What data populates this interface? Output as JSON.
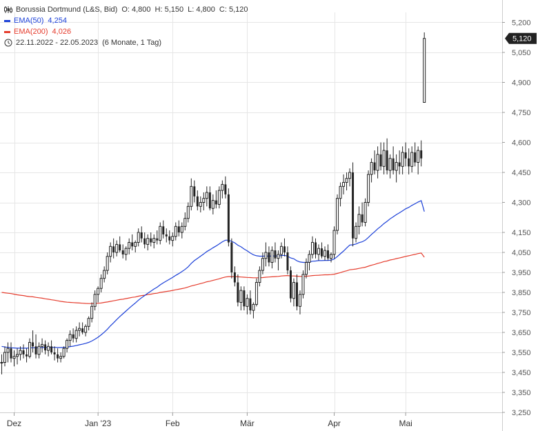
{
  "legend": {
    "instrument": "Borussia Dortmund (L&S, Bid)",
    "open_label": "O: 4,800",
    "high_label": "H: 5,150",
    "low_label": "L: 4,800",
    "close_label": "C: 5,120",
    "ema50_label": "EMA(50)",
    "ema50_value": "4,254",
    "ema200_label": "EMA(200)",
    "ema200_value": "4,026",
    "range": "22.11.2022 - 22.05.2023",
    "period": "(6 Monate, 1 Tag)"
  },
  "colors": {
    "candle": "#222222",
    "ema50": "#1a3fd8",
    "ema200": "#e53b2c",
    "grid": "#e6e6e6",
    "price_badge": "#222222"
  },
  "price_badge": "5,120",
  "chart_data": {
    "type": "candlestick",
    "ylim": [
      3.25,
      5.25
    ],
    "y_ticks": [
      "5,200",
      "5,050",
      "4,900",
      "4,750",
      "4,600",
      "4,450",
      "4,300",
      "4,150",
      "4,050",
      "3,950",
      "3,850",
      "3,750",
      "3,650",
      "3,550",
      "3,450",
      "3,350",
      "3,250"
    ],
    "y_tick_values": [
      5.2,
      5.05,
      4.9,
      4.75,
      4.6,
      4.45,
      4.3,
      4.15,
      4.05,
      3.95,
      3.85,
      3.75,
      3.65,
      3.55,
      3.45,
      3.35,
      3.25
    ],
    "x_labels": [
      "Dez",
      "Jan '23",
      "Feb",
      "Mär",
      "Apr",
      "Mai"
    ],
    "x_label_index": [
      4,
      31,
      55,
      79,
      107,
      130
    ],
    "candles": [
      [
        3.5,
        3.54,
        3.44,
        3.5
      ],
      [
        3.5,
        3.58,
        3.48,
        3.55
      ],
      [
        3.55,
        3.6,
        3.5,
        3.57
      ],
      [
        3.57,
        3.6,
        3.5,
        3.52
      ],
      [
        3.52,
        3.56,
        3.48,
        3.53
      ],
      [
        3.53,
        3.57,
        3.49,
        3.54
      ],
      [
        3.54,
        3.58,
        3.51,
        3.56
      ],
      [
        3.56,
        3.59,
        3.52,
        3.54
      ],
      [
        3.54,
        3.57,
        3.5,
        3.53
      ],
      [
        3.53,
        3.62,
        3.52,
        3.6
      ],
      [
        3.6,
        3.66,
        3.55,
        3.58
      ],
      [
        3.58,
        3.64,
        3.52,
        3.54
      ],
      [
        3.54,
        3.6,
        3.52,
        3.58
      ],
      [
        3.58,
        3.62,
        3.55,
        3.59
      ],
      [
        3.59,
        3.61,
        3.54,
        3.56
      ],
      [
        3.56,
        3.6,
        3.53,
        3.58
      ],
      [
        3.58,
        3.61,
        3.54,
        3.55
      ],
      [
        3.55,
        3.58,
        3.51,
        3.54
      ],
      [
        3.54,
        3.57,
        3.5,
        3.52
      ],
      [
        3.52,
        3.55,
        3.5,
        3.53
      ],
      [
        3.53,
        3.58,
        3.52,
        3.57
      ],
      [
        3.57,
        3.62,
        3.55,
        3.61
      ],
      [
        3.61,
        3.66,
        3.58,
        3.64
      ],
      [
        3.64,
        3.67,
        3.6,
        3.62
      ],
      [
        3.62,
        3.68,
        3.6,
        3.66
      ],
      [
        3.66,
        3.7,
        3.63,
        3.67
      ],
      [
        3.67,
        3.7,
        3.64,
        3.65
      ],
      [
        3.65,
        3.69,
        3.63,
        3.68
      ],
      [
        3.68,
        3.73,
        3.66,
        3.72
      ],
      [
        3.72,
        3.8,
        3.7,
        3.78
      ],
      [
        3.78,
        3.86,
        3.76,
        3.84
      ],
      [
        3.84,
        3.88,
        3.8,
        3.87
      ],
      [
        3.87,
        3.94,
        3.85,
        3.92
      ],
      [
        3.92,
        3.98,
        3.9,
        3.96
      ],
      [
        3.96,
        4.05,
        3.94,
        4.03
      ],
      [
        4.03,
        4.1,
        4.0,
        4.08
      ],
      [
        4.08,
        4.12,
        4.02,
        4.05
      ],
      [
        4.05,
        4.11,
        4.03,
        4.09
      ],
      [
        4.09,
        4.13,
        4.05,
        4.06
      ],
      [
        4.06,
        4.09,
        4.02,
        4.04
      ],
      [
        4.04,
        4.08,
        4.01,
        4.07
      ],
      [
        4.07,
        4.12,
        4.04,
        4.1
      ],
      [
        4.1,
        4.14,
        4.06,
        4.08
      ],
      [
        4.08,
        4.11,
        4.05,
        4.1
      ],
      [
        4.1,
        4.17,
        4.08,
        4.15
      ],
      [
        4.15,
        4.18,
        4.1,
        4.12
      ],
      [
        4.12,
        4.15,
        4.07,
        4.09
      ],
      [
        4.09,
        4.14,
        4.06,
        4.12
      ],
      [
        4.12,
        4.15,
        4.08,
        4.1
      ],
      [
        4.1,
        4.14,
        4.07,
        4.12
      ],
      [
        4.12,
        4.16,
        4.09,
        4.11
      ],
      [
        4.11,
        4.2,
        4.09,
        4.18
      ],
      [
        4.18,
        4.21,
        4.12,
        4.14
      ],
      [
        4.14,
        4.17,
        4.1,
        4.13
      ],
      [
        4.13,
        4.16,
        4.09,
        4.11
      ],
      [
        4.11,
        4.15,
        4.08,
        4.13
      ],
      [
        4.13,
        4.2,
        4.11,
        4.18
      ],
      [
        4.18,
        4.21,
        4.13,
        4.15
      ],
      [
        4.15,
        4.2,
        4.12,
        4.18
      ],
      [
        4.18,
        4.25,
        4.16,
        4.22
      ],
      [
        4.22,
        4.3,
        4.2,
        4.28
      ],
      [
        4.28,
        4.42,
        4.26,
        4.38
      ],
      [
        4.38,
        4.41,
        4.3,
        4.33
      ],
      [
        4.33,
        4.36,
        4.26,
        4.28
      ],
      [
        4.28,
        4.33,
        4.25,
        4.3
      ],
      [
        4.3,
        4.35,
        4.26,
        4.32
      ],
      [
        4.32,
        4.38,
        4.28,
        4.35
      ],
      [
        4.35,
        4.38,
        4.26,
        4.27
      ],
      [
        4.27,
        4.34,
        4.24,
        4.31
      ],
      [
        4.31,
        4.36,
        4.27,
        4.29
      ],
      [
        4.29,
        4.38,
        4.27,
        4.36
      ],
      [
        4.36,
        4.41,
        4.32,
        4.39
      ],
      [
        4.39,
        4.43,
        4.32,
        4.34
      ],
      [
        4.34,
        4.37,
        4.08,
        4.1
      ],
      [
        4.1,
        4.12,
        3.92,
        3.95
      ],
      [
        3.95,
        3.98,
        3.88,
        3.9
      ],
      [
        3.9,
        3.94,
        3.78,
        3.8
      ],
      [
        3.8,
        3.88,
        3.76,
        3.86
      ],
      [
        3.86,
        3.88,
        3.76,
        3.78
      ],
      [
        3.78,
        3.84,
        3.74,
        3.82
      ],
      [
        3.82,
        3.86,
        3.74,
        3.76
      ],
      [
        3.76,
        3.8,
        3.72,
        3.79
      ],
      [
        3.79,
        3.92,
        3.78,
        3.9
      ],
      [
        3.9,
        3.98,
        3.88,
        3.96
      ],
      [
        3.96,
        4.05,
        3.94,
        4.02
      ],
      [
        4.02,
        4.1,
        3.98,
        4.05
      ],
      [
        4.05,
        4.08,
        3.98,
        4.0
      ],
      [
        4.0,
        4.08,
        3.97,
        4.06
      ],
      [
        4.06,
        4.1,
        4.0,
        4.02
      ],
      [
        4.02,
        4.06,
        3.96,
        4.04
      ],
      [
        4.04,
        4.1,
        4.02,
        4.08
      ],
      [
        4.08,
        4.12,
        4.03,
        4.05
      ],
      [
        4.05,
        4.08,
        3.94,
        3.96
      ],
      [
        3.96,
        3.98,
        3.8,
        3.82
      ],
      [
        3.82,
        3.92,
        3.78,
        3.9
      ],
      [
        3.9,
        3.94,
        3.76,
        3.78
      ],
      [
        3.78,
        3.86,
        3.74,
        3.84
      ],
      [
        3.84,
        3.96,
        3.82,
        3.94
      ],
      [
        3.94,
        4.02,
        3.92,
        4.0
      ],
      [
        4.0,
        4.06,
        3.96,
        4.04
      ],
      [
        4.04,
        4.13,
        4.02,
        4.1
      ],
      [
        4.1,
        4.12,
        4.02,
        4.04
      ],
      [
        4.04,
        4.09,
        4.01,
        4.07
      ],
      [
        4.07,
        4.1,
        4.02,
        4.03
      ],
      [
        4.03,
        4.08,
        4.01,
        4.06
      ],
      [
        4.06,
        4.09,
        4.01,
        4.02
      ],
      [
        4.02,
        4.05,
        4.0,
        4.04
      ],
      [
        4.04,
        4.18,
        4.02,
        4.16
      ],
      [
        4.16,
        4.34,
        4.14,
        4.32
      ],
      [
        4.32,
        4.4,
        4.28,
        4.38
      ],
      [
        4.38,
        4.44,
        4.34,
        4.4
      ],
      [
        4.4,
        4.45,
        4.36,
        4.42
      ],
      [
        4.42,
        4.47,
        4.38,
        4.45
      ],
      [
        4.45,
        4.5,
        4.08,
        4.12
      ],
      [
        4.12,
        4.2,
        4.1,
        4.18
      ],
      [
        4.18,
        4.28,
        4.14,
        4.24
      ],
      [
        4.24,
        4.3,
        4.18,
        4.2
      ],
      [
        4.2,
        4.32,
        4.18,
        4.3
      ],
      [
        4.3,
        4.46,
        4.28,
        4.44
      ],
      [
        4.44,
        4.52,
        4.4,
        4.5
      ],
      [
        4.5,
        4.56,
        4.44,
        4.46
      ],
      [
        4.46,
        4.58,
        4.42,
        4.54
      ],
      [
        4.54,
        4.6,
        4.46,
        4.48
      ],
      [
        4.48,
        4.6,
        4.44,
        4.56
      ],
      [
        4.56,
        4.62,
        4.44,
        4.46
      ],
      [
        4.46,
        4.54,
        4.42,
        4.52
      ],
      [
        4.52,
        4.58,
        4.44,
        4.46
      ],
      [
        4.46,
        4.54,
        4.4,
        4.5
      ],
      [
        4.5,
        4.56,
        4.44,
        4.48
      ],
      [
        4.48,
        4.58,
        4.44,
        4.55
      ],
      [
        4.55,
        4.6,
        4.48,
        4.52
      ],
      [
        4.52,
        4.57,
        4.44,
        4.48
      ],
      [
        4.48,
        4.58,
        4.45,
        4.55
      ],
      [
        4.55,
        4.6,
        4.48,
        4.5
      ],
      [
        4.5,
        4.58,
        4.44,
        4.56
      ],
      [
        4.56,
        4.61,
        4.48,
        4.52
      ],
      [
        4.8,
        5.15,
        4.8,
        5.12
      ]
    ],
    "ema50": [
      3.58,
      3.577,
      3.575,
      3.573,
      3.572,
      3.571,
      3.571,
      3.571,
      3.571,
      3.572,
      3.573,
      3.573,
      3.573,
      3.574,
      3.574,
      3.575,
      3.575,
      3.575,
      3.574,
      3.574,
      3.575,
      3.576,
      3.579,
      3.581,
      3.584,
      3.588,
      3.591,
      3.595,
      3.6,
      3.607,
      3.616,
      3.626,
      3.638,
      3.651,
      3.666,
      3.683,
      3.698,
      3.714,
      3.729,
      3.743,
      3.757,
      3.771,
      3.784,
      3.797,
      3.811,
      3.823,
      3.834,
      3.846,
      3.856,
      3.867,
      3.876,
      3.888,
      3.898,
      3.907,
      3.916,
      3.925,
      3.935,
      3.944,
      3.954,
      3.965,
      3.978,
      3.995,
      4.009,
      4.02,
      4.031,
      4.042,
      4.054,
      4.063,
      4.073,
      4.082,
      4.092,
      4.103,
      4.111,
      4.111,
      4.105,
      4.098,
      4.086,
      4.078,
      4.067,
      4.058,
      4.047,
      4.038,
      4.033,
      4.031,
      4.031,
      4.032,
      4.031,
      4.032,
      4.032,
      4.032,
      4.034,
      4.035,
      4.031,
      4.022,
      4.018,
      4.008,
      4.002,
      4.0,
      4.0,
      4.002,
      4.006,
      4.007,
      4.009,
      4.009,
      4.01,
      4.01,
      4.011,
      4.017,
      4.029,
      4.043,
      4.057,
      4.072,
      4.087,
      4.088,
      4.092,
      4.099,
      4.103,
      4.111,
      4.125,
      4.14,
      4.153,
      4.168,
      4.18,
      4.194,
      4.205,
      4.218,
      4.228,
      4.239,
      4.248,
      4.258,
      4.268,
      4.275,
      4.285,
      4.293,
      4.302,
      4.309,
      4.254
    ],
    "ema200": [
      3.85,
      3.848,
      3.846,
      3.844,
      3.841,
      3.838,
      3.836,
      3.834,
      3.831,
      3.829,
      3.828,
      3.825,
      3.823,
      3.821,
      3.818,
      3.816,
      3.813,
      3.811,
      3.808,
      3.805,
      3.803,
      3.801,
      3.8,
      3.799,
      3.798,
      3.797,
      3.796,
      3.795,
      3.794,
      3.794,
      3.795,
      3.796,
      3.797,
      3.8,
      3.802,
      3.805,
      3.808,
      3.811,
      3.814,
      3.816,
      3.819,
      3.822,
      3.825,
      3.827,
      3.831,
      3.834,
      3.836,
      3.839,
      3.841,
      3.844,
      3.846,
      3.85,
      3.852,
      3.855,
      3.857,
      3.86,
      3.863,
      3.866,
      3.869,
      3.872,
      3.877,
      3.882,
      3.886,
      3.89,
      3.894,
      3.898,
      3.903,
      3.906,
      3.91,
      3.914,
      3.918,
      3.923,
      3.927,
      3.929,
      3.929,
      3.929,
      3.928,
      3.927,
      3.926,
      3.925,
      3.924,
      3.923,
      3.923,
      3.923,
      3.924,
      3.926,
      3.927,
      3.928,
      3.929,
      3.93,
      3.932,
      3.933,
      3.934,
      3.932,
      3.932,
      3.931,
      3.93,
      3.93,
      3.931,
      3.932,
      3.934,
      3.935,
      3.936,
      3.937,
      3.938,
      3.938,
      3.939,
      3.941,
      3.945,
      3.949,
      3.954,
      3.958,
      3.963,
      3.965,
      3.967,
      3.97,
      3.973,
      3.976,
      3.981,
      3.986,
      3.99,
      3.995,
      3.999,
      4.004,
      4.007,
      4.012,
      4.015,
      4.019,
      4.022,
      4.026,
      4.03,
      4.033,
      4.037,
      4.04,
      4.044,
      4.047,
      4.026
    ]
  }
}
